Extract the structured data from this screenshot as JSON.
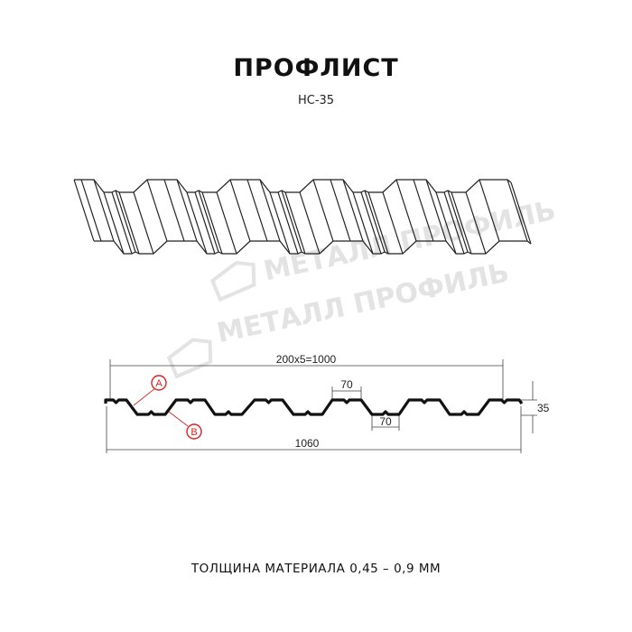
{
  "title": "ПРОФЛИСТ",
  "subtitle": "НС-35",
  "footer": "ТОЛЩИНА МАТЕРИАЛА 0,45 – 0,9 ММ",
  "watermark": "МЕТАЛЛ ПРОФИЛЬ",
  "dimensions": {
    "pitch_total": "200x5=1000",
    "top_width": "70",
    "bottom_width": "70",
    "height": "35",
    "total_width": "1060"
  },
  "callouts": {
    "a": "A",
    "b": "B"
  },
  "colors": {
    "line": "#111111",
    "callout": "#e02020",
    "watermark": "#e3e3e3"
  }
}
